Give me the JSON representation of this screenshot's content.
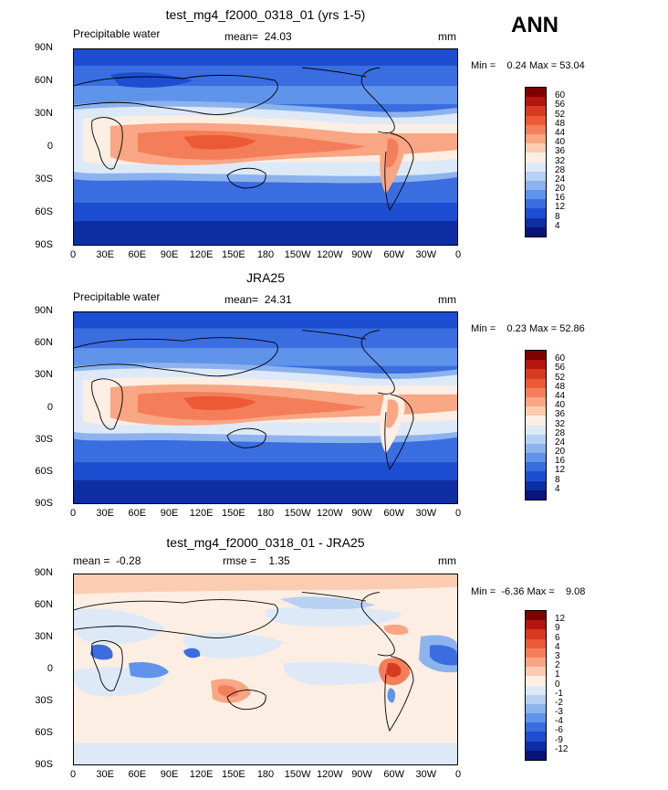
{
  "season": "ANN",
  "lat_labels": [
    "90N",
    "60N",
    "30N",
    "0",
    "30S",
    "60S",
    "90S"
  ],
  "lon_labels": [
    "0",
    "30E",
    "60E",
    "90E",
    "120E",
    "150E",
    "180",
    "150W",
    "120W",
    "90W",
    "60W",
    "30W",
    "0"
  ],
  "panels": [
    {
      "title": "test_mg4_f2000_0318_01 (yrs 1-5)",
      "left_label": "Precipitable water",
      "center_label": "mean=  24.03",
      "units": "mm",
      "min_label": "Min =",
      "min_value": "0.24",
      "max_label": "Max =",
      "max_value": "53.04",
      "colorbar": {
        "levels": [
          "60",
          "56",
          "52",
          "48",
          "44",
          "40",
          "36",
          "32",
          "28",
          "24",
          "20",
          "16",
          "12",
          "8",
          "4"
        ],
        "colors": [
          "#7f0000",
          "#b3150f",
          "#d63a1f",
          "#ec5a35",
          "#f47e5a",
          "#f9a684",
          "#fbccb1",
          "#fdeee3",
          "#dde9f7",
          "#b7d1f2",
          "#8cb3ee",
          "#6093ea",
          "#3a6de0",
          "#1d4ed1",
          "#0d2fa3",
          "#08137b"
        ]
      }
    },
    {
      "title": "JRA25",
      "left_label": "Precipitable water",
      "center_label": "mean=  24.31",
      "units": "mm",
      "min_label": "Min =",
      "min_value": "0.23",
      "max_label": "Max =",
      "max_value": "52.86",
      "colorbar": {
        "levels": [
          "60",
          "56",
          "52",
          "48",
          "44",
          "40",
          "36",
          "32",
          "28",
          "24",
          "20",
          "16",
          "12",
          "8",
          "4"
        ],
        "colors": [
          "#7f0000",
          "#b3150f",
          "#d63a1f",
          "#ec5a35",
          "#f47e5a",
          "#f9a684",
          "#fbccb1",
          "#fdeee3",
          "#dde9f7",
          "#b7d1f2",
          "#8cb3ee",
          "#6093ea",
          "#3a6de0",
          "#1d4ed1",
          "#0d2fa3",
          "#08137b"
        ]
      }
    },
    {
      "title": "test_mg4_f2000_0318_01 - JRA25",
      "left_label": "mean =  -0.28",
      "center_label": "rmse =    1.35",
      "units": "mm",
      "min_label": "Min =",
      "min_value": "-6.36",
      "max_label": "Max =",
      "max_value": "9.08",
      "colorbar": {
        "levels": [
          "12",
          "9",
          "6",
          "4",
          "3",
          "2",
          "1",
          "0",
          "-1",
          "-2",
          "-3",
          "-4",
          "-6",
          "-9",
          "-12"
        ],
        "colors": [
          "#7f0000",
          "#b3150f",
          "#d63a1f",
          "#ec5a35",
          "#f47e5a",
          "#f9a684",
          "#fbccb1",
          "#fdeee3",
          "#dde9f7",
          "#b7d1f2",
          "#8cb3ee",
          "#6093ea",
          "#3a6de0",
          "#1d4ed1",
          "#0d2fa3",
          "#08137b"
        ]
      }
    }
  ]
}
